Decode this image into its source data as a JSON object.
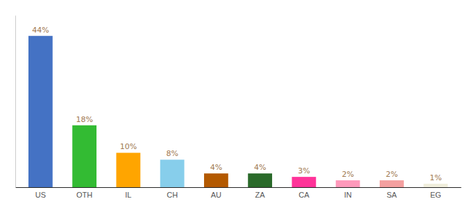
{
  "chart_data": {
    "type": "bar",
    "categories": [
      "US",
      "OTH",
      "IL",
      "CH",
      "AU",
      "ZA",
      "CA",
      "IN",
      "SA",
      "EG"
    ],
    "values": [
      44,
      18,
      10,
      8,
      4,
      4,
      3,
      2,
      2,
      1
    ],
    "value_labels": [
      "44%",
      "18%",
      "10%",
      "8%",
      "4%",
      "4%",
      "3%",
      "2%",
      "2%",
      "1%"
    ],
    "colors": [
      "#4472c4",
      "#33bb33",
      "#ffa500",
      "#87ceeb",
      "#b35900",
      "#2a6a2a",
      "#ff3399",
      "#ff99bb",
      "#f4a0a0",
      "#f0eedc"
    ],
    "ylim": [
      0,
      50
    ],
    "data_labels": true,
    "tick_labels": "x",
    "grid": false
  }
}
